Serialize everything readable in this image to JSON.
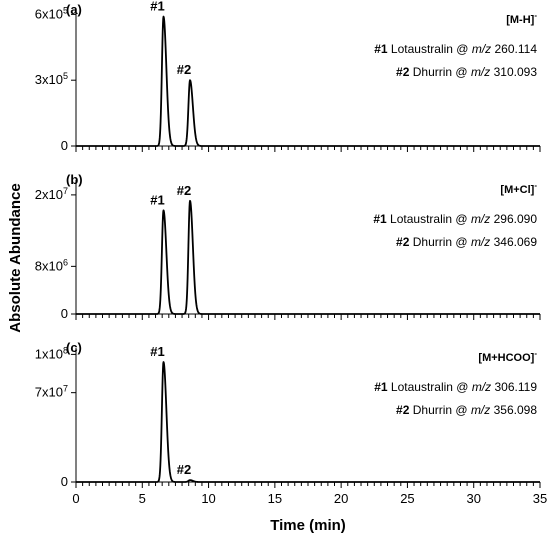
{
  "chart_data": {
    "type": "line",
    "ylabel": "Absolute Abundance",
    "xlabel": "Time (min)",
    "xlim": [
      0,
      35
    ],
    "x_major_ticks": [
      0,
      5,
      10,
      15,
      20,
      25,
      30,
      35
    ],
    "x_minor_step": 0.5,
    "grid": false,
    "legend_position": "top-right",
    "panels": [
      {
        "label": "(a)",
        "ion": {
          "base": "[M-H]",
          "sup": "-"
        },
        "ylim": [
          0,
          620000
        ],
        "y_ticks": [
          {
            "value": 0,
            "base": "0",
            "sup": ""
          },
          {
            "value": 300000,
            "base": "3x10",
            "sup": "5"
          },
          {
            "value": 600000,
            "base": "6x10",
            "sup": "5"
          }
        ],
        "peaks": [
          {
            "label": "#1",
            "compound": "Lotaustralin",
            "mz_prefix": "m/z",
            "mz": "260.114",
            "time": 6.6,
            "height": 590000
          },
          {
            "label": "#2",
            "compound": "Dhurrin",
            "mz_prefix": "m/z",
            "mz": "310.093",
            "time": 8.6,
            "height": 300000
          }
        ]
      },
      {
        "label": "(b)",
        "ion": {
          "base": "[M+Cl]",
          "sup": "-"
        },
        "ylim": [
          0,
          22500000
        ],
        "y_ticks": [
          {
            "value": 0,
            "base": "0",
            "sup": ""
          },
          {
            "value": 8000000,
            "base": "8x10",
            "sup": "6"
          },
          {
            "value": 20000000,
            "base": "2x10",
            "sup": "7"
          }
        ],
        "peaks": [
          {
            "label": "#1",
            "compound": "Lotaustralin",
            "mz_prefix": "m/z",
            "mz": "296.090",
            "time": 6.6,
            "height": 17400000
          },
          {
            "label": "#2",
            "compound": "Dhurrin",
            "mz_prefix": "m/z",
            "mz": "346.069",
            "time": 8.6,
            "height": 19000000
          }
        ]
      },
      {
        "label": "(c)",
        "ion": {
          "base": "[M+HCOO]",
          "sup": "-"
        },
        "ylim": [
          0,
          105000000
        ],
        "y_ticks": [
          {
            "value": 0,
            "base": "0",
            "sup": ""
          },
          {
            "value": 70000000,
            "base": "7x10",
            "sup": "7"
          },
          {
            "value": 100000000,
            "base": "1x10",
            "sup": "8"
          }
        ],
        "peaks": [
          {
            "label": "#1",
            "compound": "Lotaustralin",
            "mz_prefix": "m/z",
            "mz": "306.119",
            "time": 6.6,
            "height": 94000000
          },
          {
            "label": "#2",
            "compound": "Dhurrin",
            "mz_prefix": "m/z",
            "mz": "356.098",
            "time": 8.6,
            "height": 1500000
          }
        ]
      }
    ]
  }
}
